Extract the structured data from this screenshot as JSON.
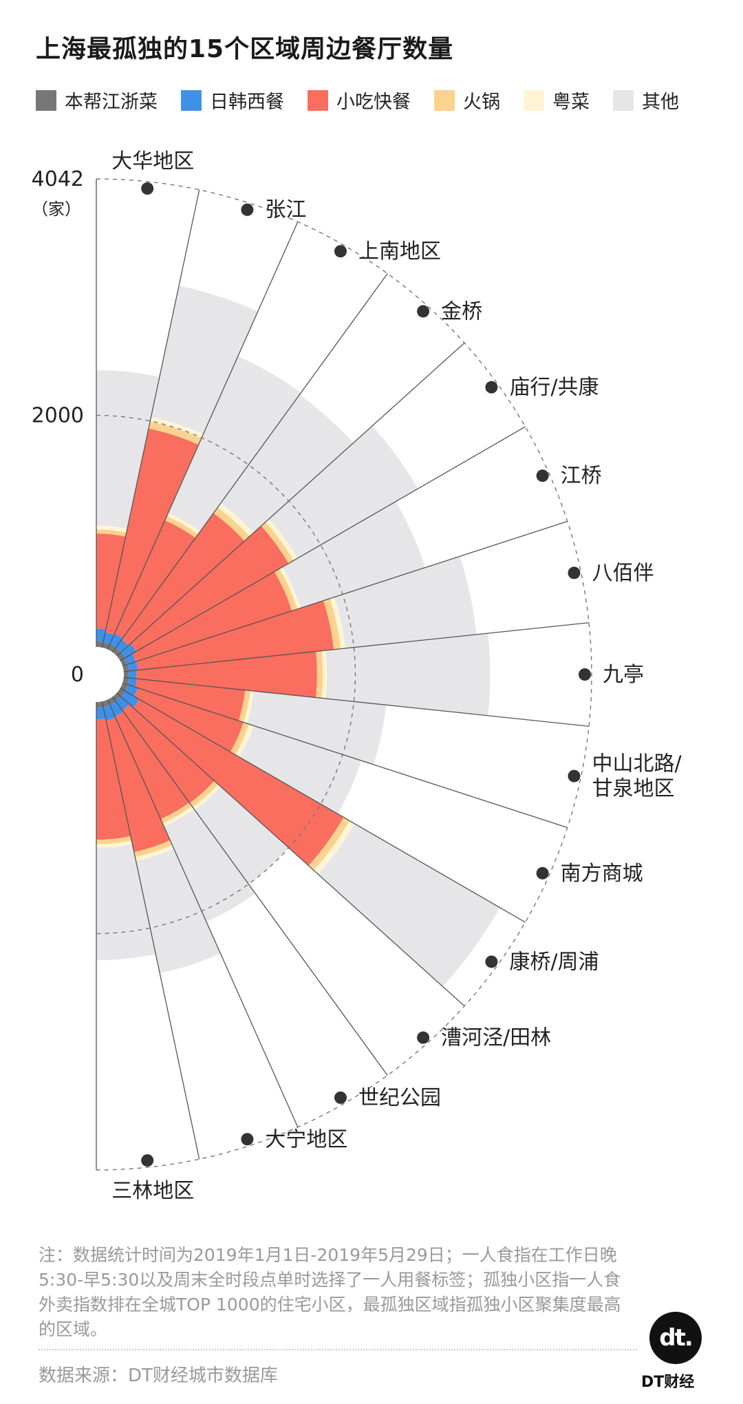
{
  "title": "上海最孤独的15个区域周边餐厅数量",
  "legend": [
    {
      "name": "本帮江浙菜",
      "color": "#777777"
    },
    {
      "name": "日韩西餐",
      "color": "#3f90e9"
    },
    {
      "name": "小吃快餐",
      "color": "#fa6e5f"
    },
    {
      "name": "火锅",
      "color": "#fbd38e"
    },
    {
      "name": "粤菜",
      "color": "#fff5d4"
    },
    {
      "name": "其他",
      "color": "#e6e5e8"
    }
  ],
  "note": "注：数据统计时间为2019年1月1日-2019年5月29日；一人食指在工作日晚5:30-早5:30以及周末全时段点单时选择了一人用餐标签；孤独小区指一人食外卖指数排在全城TOP 1000的住宅小区，最孤独区域指孤独小区聚集度最高的区域。",
  "source": "数据来源：DT财经城市数据库",
  "brand": {
    "logo": "dt.",
    "name": "DT财经"
  },
  "chart_data": {
    "type": "radial-stacked-bar",
    "title": "上海最孤独的15个区域周边餐厅数量",
    "unit": "（家）",
    "axis_ticks": [
      0,
      2000,
      4042
    ],
    "r_max": 4042,
    "stack_order": [
      "本帮江浙菜",
      "日韩西餐",
      "小吃快餐",
      "火锅",
      "粤菜",
      "其他"
    ],
    "categories": [
      "大华地区",
      "张江",
      "上南地区",
      "金桥",
      "庙行/共康",
      "江桥",
      "八佰伴",
      "九亭",
      "中山北路/甘泉地区",
      "南方商城",
      "康桥/周浦",
      "漕河泾/田林",
      "世纪公园",
      "大宁地区",
      "三林地区"
    ],
    "label_lines": [
      [
        "大华地区"
      ],
      [
        "张江"
      ],
      [
        "上南地区"
      ],
      [
        "金桥"
      ],
      [
        "庙行/共康"
      ],
      [
        "江桥"
      ],
      [
        "八佰伴"
      ],
      [
        "九亭"
      ],
      [
        "中山北路/",
        "甘泉地区"
      ],
      [
        "南方商城"
      ],
      [
        "康桥/周浦"
      ],
      [
        "漕河泾/田林"
      ],
      [
        "世纪公园"
      ],
      [
        "大宁地区"
      ],
      [
        "三林地区"
      ]
    ],
    "series": [
      {
        "name": "本帮江浙菜",
        "values": [
          50,
          45,
          50,
          45,
          50,
          40,
          45,
          40,
          45,
          50,
          50,
          45,
          50,
          50,
          50
        ]
      },
      {
        "name": "日韩西餐",
        "values": [
          110,
          90,
          100,
          90,
          110,
          80,
          80,
          70,
          70,
          90,
          140,
          100,
          110,
          120,
          100
        ]
      },
      {
        "name": "小吃快餐",
        "values": [
          820,
          1800,
          1070,
          1350,
          1520,
          1420,
          1700,
          1560,
          940,
          960,
          2040,
          990,
          970,
          1160,
          1040
        ]
      },
      {
        "name": "火锅",
        "values": [
          35,
          60,
          40,
          60,
          50,
          50,
          60,
          50,
          45,
          50,
          60,
          45,
          40,
          45,
          40
        ]
      },
      {
        "name": "粤菜",
        "values": [
          35,
          40,
          30,
          45,
          40,
          30,
          40,
          35,
          30,
          40,
          50,
          30,
          30,
          35,
          30
        ]
      },
      {
        "name": "其他",
        "values": [
          1340,
          1160,
          1480,
          1160,
          1200,
          1130,
          1140,
          1410,
          1150,
          980,
          1450,
          790,
          900,
          990,
          970
        ]
      }
    ]
  }
}
